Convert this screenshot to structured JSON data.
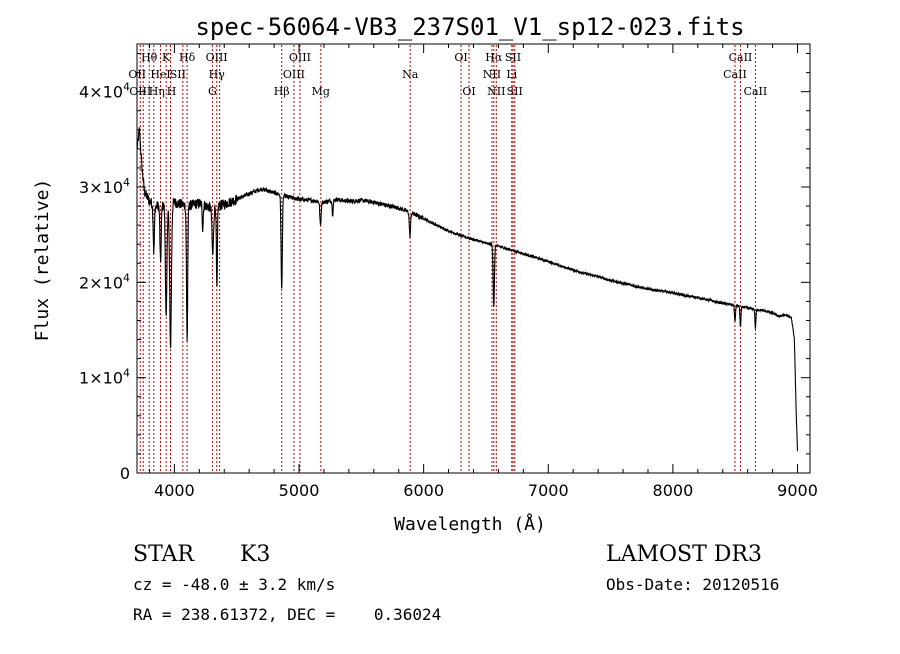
{
  "chart_data": {
    "type": "line",
    "title": "spec-56064-VB3_237S01_V1_sp12-023.fits",
    "xlabel": "Wavelength (Å)",
    "ylabel": "Flux (relative)",
    "xlim": [
      3700,
      9100
    ],
    "ylim": [
      0,
      45000
    ],
    "x_ticks": [
      {
        "value": 4000,
        "label": "4000"
      },
      {
        "value": 5000,
        "label": "5000"
      },
      {
        "value": 6000,
        "label": "6000"
      },
      {
        "value": 7000,
        "label": "7000"
      },
      {
        "value": 8000,
        "label": "8000"
      },
      {
        "value": 9000,
        "label": "9000"
      }
    ],
    "y_ticks": [
      {
        "value": 0,
        "mant": "0",
        "exp": ""
      },
      {
        "value": 10000,
        "mant": "1×10",
        "exp": "4"
      },
      {
        "value": 20000,
        "mant": "2×10",
        "exp": "4"
      },
      {
        "value": 30000,
        "mant": "3×10",
        "exp": "4"
      },
      {
        "value": 40000,
        "mant": "4×10",
        "exp": "4"
      }
    ],
    "series": [
      {
        "name": "flux",
        "color": "#000000",
        "continuum": [
          [
            3700,
            34000
          ],
          [
            3720,
            36000
          ],
          [
            3740,
            32000
          ],
          [
            3760,
            29500
          ],
          [
            3800,
            28500
          ],
          [
            3850,
            28000
          ],
          [
            3900,
            28000
          ],
          [
            4000,
            28400
          ],
          [
            4100,
            28000
          ],
          [
            4200,
            28300
          ],
          [
            4300,
            27800
          ],
          [
            4400,
            28200
          ],
          [
            4500,
            28700
          ],
          [
            4600,
            29300
          ],
          [
            4700,
            29800
          ],
          [
            4800,
            29400
          ],
          [
            4900,
            29000
          ],
          [
            5000,
            28700
          ],
          [
            5100,
            28600
          ],
          [
            5200,
            28400
          ],
          [
            5300,
            28700
          ],
          [
            5400,
            28500
          ],
          [
            5500,
            28600
          ],
          [
            5600,
            28400
          ],
          [
            5700,
            28100
          ],
          [
            5800,
            27800
          ],
          [
            5900,
            27300
          ],
          [
            6000,
            26700
          ],
          [
            6100,
            26000
          ],
          [
            6200,
            25400
          ],
          [
            6300,
            24900
          ],
          [
            6400,
            24500
          ],
          [
            6500,
            24100
          ],
          [
            6600,
            23800
          ],
          [
            6700,
            23400
          ],
          [
            6800,
            23000
          ],
          [
            6900,
            22600
          ],
          [
            7000,
            22200
          ],
          [
            7100,
            21700
          ],
          [
            7200,
            21300
          ],
          [
            7300,
            20900
          ],
          [
            7400,
            20600
          ],
          [
            7500,
            20200
          ],
          [
            7600,
            19900
          ],
          [
            7700,
            19600
          ],
          [
            7800,
            19300
          ],
          [
            7900,
            19100
          ],
          [
            8000,
            18900
          ],
          [
            8100,
            18600
          ],
          [
            8200,
            18400
          ],
          [
            8300,
            18100
          ],
          [
            8400,
            17800
          ],
          [
            8500,
            17600
          ],
          [
            8600,
            17300
          ],
          [
            8700,
            17100
          ],
          [
            8800,
            16800
          ],
          [
            8850,
            16400
          ],
          [
            8900,
            16600
          ],
          [
            8950,
            16300
          ],
          [
            8975,
            14000
          ],
          [
            8990,
            6000
          ],
          [
            9000,
            2300
          ]
        ],
        "absorption": [
          {
            "center": 3835,
            "depth": 5000,
            "width": 5
          },
          {
            "center": 3889,
            "depth": 6000,
            "width": 5
          },
          {
            "center": 3934,
            "depth": 12000,
            "width": 6
          },
          {
            "center": 3969,
            "depth": 15000,
            "width": 7
          },
          {
            "center": 4102,
            "depth": 14000,
            "width": 5
          },
          {
            "center": 4227,
            "depth": 2500,
            "width": 4
          },
          {
            "center": 4308,
            "depth": 5000,
            "width": 6
          },
          {
            "center": 4341,
            "depth": 9000,
            "width": 4
          },
          {
            "center": 4861,
            "depth": 10000,
            "width": 5
          },
          {
            "center": 5172,
            "depth": 2500,
            "width": 5
          },
          {
            "center": 5270,
            "depth": 1500,
            "width": 4
          },
          {
            "center": 5890,
            "depth": 2500,
            "width": 5
          },
          {
            "center": 6563,
            "depth": 6500,
            "width": 5
          },
          {
            "center": 8498,
            "depth": 1800,
            "width": 4
          },
          {
            "center": 8542,
            "depth": 2200,
            "width": 4
          },
          {
            "center": 8662,
            "depth": 2000,
            "width": 4
          }
        ]
      }
    ],
    "line_markers": [
      {
        "x": 3726,
        "label": "OII",
        "row": 1,
        "dx": -3
      },
      {
        "x": 3750,
        "label": "OIII",
        "row": 2,
        "dx": -3
      },
      {
        "x": 3798,
        "label": "Hθ",
        "row": 0,
        "dx": 0
      },
      {
        "x": 3835,
        "label": "Hη",
        "row": 2,
        "dx": 3
      },
      {
        "x": 3889,
        "label": "HeI",
        "row": 1,
        "dx": 0
      },
      {
        "x": 3934,
        "label": "K",
        "row": 0,
        "dx": 0
      },
      {
        "x": 3969,
        "label": "H",
        "row": 2,
        "dx": 1
      },
      {
        "x": 4068,
        "label": "SII",
        "row": 1,
        "dx": -5
      },
      {
        "x": 4102,
        "label": "Hδ",
        "row": 0,
        "dx": 0
      },
      {
        "x": 4305,
        "label": "G",
        "row": 2,
        "dx": 0
      },
      {
        "x": 4340,
        "label": "Hγ",
        "row": 1,
        "dx": 0
      },
      {
        "x": 4363,
        "label": "OIII",
        "row": 0,
        "dx": -3
      },
      {
        "x": 4861,
        "label": "Hβ",
        "row": 2,
        "dx": 0
      },
      {
        "x": 4959,
        "label": "OIII",
        "row": 1,
        "dx": 0
      },
      {
        "x": 5007,
        "label": "OIII",
        "row": 0,
        "dx": 0
      },
      {
        "x": 5175,
        "label": "Mg",
        "row": 2,
        "dx": 0
      },
      {
        "x": 5892,
        "label": "Na",
        "row": 1,
        "dx": 0
      },
      {
        "x": 6300,
        "label": "OI",
        "row": 0,
        "dx": 0
      },
      {
        "x": 6364,
        "label": "OI",
        "row": 2,
        "dx": 0
      },
      {
        "x": 6548,
        "label": "NII",
        "row": 1,
        "dx": 0
      },
      {
        "x": 6563,
        "label": "Hα",
        "row": 0,
        "dx": 0
      },
      {
        "x": 6583,
        "label": "NII",
        "row": 2,
        "dx": 0
      },
      {
        "x": 6707,
        "label": "Li",
        "row": 1,
        "dx": 0
      },
      {
        "x": 6717,
        "label": "SII",
        "row": 0,
        "dx": 0
      },
      {
        "x": 6731,
        "label": "SII",
        "row": 2,
        "dx": 0
      },
      {
        "x": 8498,
        "label": "CaII",
        "row": 1,
        "dx": 0
      },
      {
        "x": 8542,
        "label": "CaII",
        "row": 0,
        "dx": 0
      },
      {
        "x": 8662,
        "label": "CaII",
        "row": 2,
        "dx": 0
      }
    ]
  },
  "info": {
    "object_class": "STAR",
    "subclass": "K3",
    "survey": "LAMOST DR3",
    "redshift": "cz = -48.0 ± 3.2 km/s",
    "obs_date": "Obs-Date: 20120516",
    "coords": "RA = 238.61372, DEC =    0.36024"
  },
  "colors": {
    "spectrum": "#000000",
    "marker_line": "#c00000",
    "axis": "#000000",
    "background": "#ffffff"
  }
}
